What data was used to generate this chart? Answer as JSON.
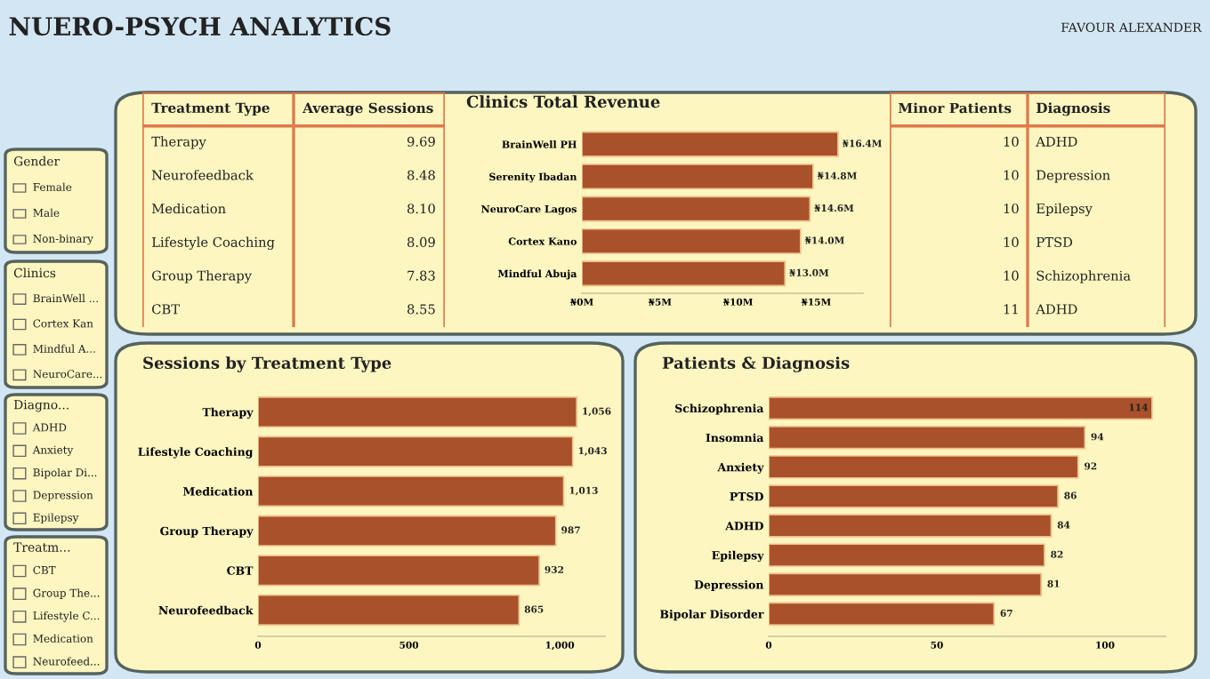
{
  "chart_data": [
    {
      "type": "other",
      "title": "NUERO-PSYCH ANALYTICS",
      "annotations": [
        "FAVOUR ALEXANDER"
      ]
    },
    {
      "type": "other",
      "title": "Gender",
      "annotations": [
        "Female",
        "Male",
        "Non-binary"
      ]
    },
    {
      "type": "other",
      "title": "Clinics",
      "annotations": [
        "BrainWell ...",
        "Cortex Kan",
        "Mindful A...",
        "NeuroCare..."
      ]
    },
    {
      "type": "other",
      "title": "Diagno...",
      "annotations": [
        "ADHD",
        "Anxiety",
        "Bipolar Di...",
        "Depression",
        "Epilepsy"
      ]
    },
    {
      "type": "other",
      "title": "Treatm...",
      "annotations": [
        "CBT",
        "Group The...",
        "Lifestyle C...",
        "Medication",
        "Neurofeed..."
      ]
    },
    {
      "type": "other",
      "xlabel": "Treatment Type",
      "ylabel": "Average Sessions",
      "categories": [
        "Therapy",
        "Neurofeedback",
        "Medication",
        "Lifestyle Coaching",
        "Group Therapy",
        "CBT"
      ],
      "values": [
        9.69,
        8.48,
        8.1,
        8.09,
        7.83,
        8.55
      ],
      "value_labels": [
        "9.69",
        "8.48",
        "8.10",
        "8.09",
        "7.83",
        "8.55"
      ]
    },
    {
      "type": "bar",
      "orientation": "horizontal",
      "title": "Clinics Total Revenue",
      "categories": [
        "BrainWell PH",
        "Serenity Ibadan",
        "NeuroCare Lagos",
        "Cortex Kano",
        "Mindful Abuja"
      ],
      "values": [
        16.4,
        14.8,
        14.6,
        14.0,
        13.0
      ],
      "color": "#a9512a",
      "value_labels": [
        "₦16.4M",
        "₦14.8M",
        "₦14.6M",
        "₦14.0M",
        "₦13.0M"
      ],
      "xlim": [
        0,
        18
      ],
      "xticks": [
        {
          "value": 0,
          "label": "₦0M"
        },
        {
          "value": 5,
          "label": "₦5M"
        },
        {
          "value": 10,
          "label": "₦10M"
        },
        {
          "value": 15,
          "label": "₦15M"
        }
      ]
    },
    {
      "type": "other",
      "xlabel": "Minor Patients",
      "ylabel": "Diagnosis",
      "categories": [
        "ADHD",
        "Depression",
        "Epilepsy",
        "PTSD",
        "Schizophrenia",
        "ADHD"
      ],
      "values": [
        10,
        10,
        10,
        10,
        10,
        11
      ],
      "data_labels": true
    },
    {
      "type": "bar",
      "orientation": "horizontal",
      "title": "Sessions by Treatment Type",
      "categories": [
        "Therapy",
        "Lifestyle Coaching",
        "Medication",
        "Group Therapy",
        "CBT",
        "Neurofeedback"
      ],
      "values": [
        1056,
        1043,
        1013,
        987,
        932,
        865
      ],
      "color": "#a9512a",
      "value_labels": [
        "1,056",
        "1,043",
        "1,013",
        "987",
        "932",
        "865"
      ],
      "xlim": [
        0,
        1150
      ],
      "xticks": [
        0,
        500,
        {
          "value": 1000,
          "label": "1,000"
        }
      ]
    },
    {
      "type": "bar",
      "orientation": "horizontal",
      "title": "Patients & Diagnosis",
      "categories": [
        "Schizophrenia",
        "Insomnia",
        "Anxiety",
        "PTSD",
        "ADHD",
        "Epilepsy",
        "Depression",
        "Bipolar Disorder"
      ],
      "values": [
        114,
        94,
        92,
        86,
        84,
        82,
        81,
        67
      ],
      "color": "#a9512a",
      "data_labels": true,
      "xlim": [
        0,
        118
      ],
      "xticks": [
        0,
        50,
        100
      ]
    }
  ]
}
